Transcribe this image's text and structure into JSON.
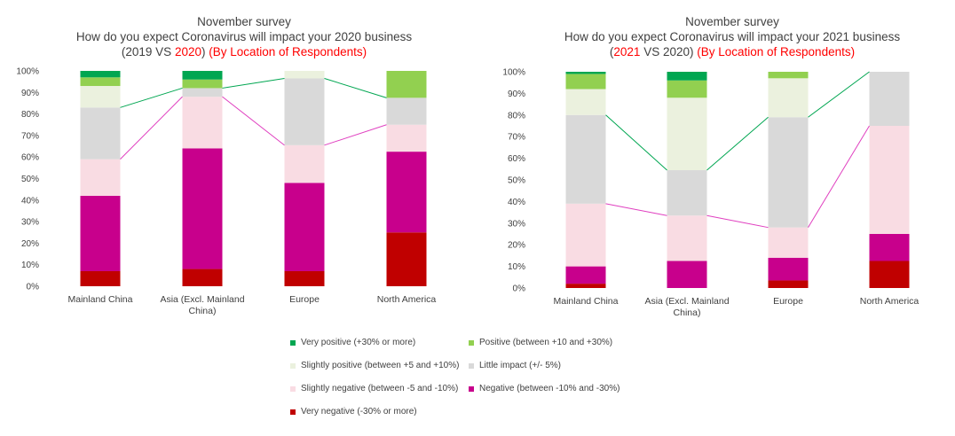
{
  "colors": {
    "very_positive": "#00a651",
    "positive": "#92d050",
    "slightly_positive": "#ebf1de",
    "little_impact": "#d9d9d9",
    "slightly_negative": "#f9dce3",
    "negative": "#c8008c",
    "very_negative": "#c00000",
    "trend_positive": "#00a651",
    "trend_negative": "#e040c0",
    "axis_text": "#404040",
    "title_red": "#ff0000"
  },
  "chart_data": [
    {
      "type": "bar",
      "stacked": true,
      "title": "November survey",
      "subtitle": "How do you expect Coronavirus will impact your 2020 business",
      "subtitle2_prefix": "(2019 VS ",
      "subtitle2_year": "2020",
      "subtitle2_mid": ") ",
      "subtitle2_red": "(By Location of Respondents)",
      "categories": [
        "Mainland China",
        "Asia (Excl. Mainland China)",
        "Europe",
        "North America"
      ],
      "category_lines": [
        [
          "Mainland China"
        ],
        [
          "Asia (Excl. Mainland",
          "China)"
        ],
        [
          "Europe"
        ],
        [
          "North America"
        ]
      ],
      "yticks": [
        "0%",
        "10%",
        "20%",
        "30%",
        "40%",
        "50%",
        "60%",
        "70%",
        "80%",
        "90%",
        "100%"
      ],
      "ylim": [
        0,
        100
      ],
      "series": [
        {
          "name": "Very negative (-30% or more)",
          "key": "very_negative",
          "values": [
            7,
            8,
            7,
            25
          ]
        },
        {
          "name": "Negative (between -10% and -30%)",
          "key": "negative",
          "values": [
            35,
            56,
            41,
            37.5
          ]
        },
        {
          "name": "Slightly negative (between -5 and -10%)",
          "key": "slightly_negative",
          "values": [
            17,
            24,
            17.5,
            12.5
          ]
        },
        {
          "name": "Little impact (+/- 5%)",
          "key": "little_impact",
          "values": [
            24,
            4,
            31,
            12.5
          ]
        },
        {
          "name": "Slightly positive (between +5 and +10%)",
          "key": "slightly_positive",
          "values": [
            10,
            0,
            3.5,
            0
          ]
        },
        {
          "name": "Positive (between +10 and +30%)",
          "key": "positive",
          "values": [
            4,
            4,
            0,
            12.5
          ]
        },
        {
          "name": "Very positive (+30% or more)",
          "key": "very_positive",
          "values": [
            3,
            4,
            0,
            0
          ]
        }
      ]
    },
    {
      "type": "bar",
      "stacked": true,
      "title": "November survey",
      "subtitle": "How do you expect Coronavirus will impact your 2021 business",
      "subtitle2_prefix": "(",
      "subtitle2_year": "2021",
      "subtitle2_mid": " VS 2020) ",
      "subtitle2_red": "(By Location of Respondents)",
      "categories": [
        "Mainland China",
        "Asia (Excl. Mainland China)",
        "Europe",
        "North America"
      ],
      "category_lines": [
        [
          "Mainland China"
        ],
        [
          "Asia (Excl. Mainland",
          "China)"
        ],
        [
          "Europe"
        ],
        [
          "North America"
        ]
      ],
      "yticks": [
        "0%",
        "10%",
        "20%",
        "30%",
        "40%",
        "50%",
        "60%",
        "70%",
        "80%",
        "90%",
        "100%"
      ],
      "ylim": [
        0,
        100
      ],
      "series": [
        {
          "name": "Very negative (-30% or more)",
          "key": "very_negative",
          "values": [
            2,
            0,
            3.5,
            12.5
          ]
        },
        {
          "name": "Negative (between -10% and -30%)",
          "key": "negative",
          "values": [
            8,
            12.5,
            10.5,
            12.5
          ]
        },
        {
          "name": "Slightly negative (between -5 and -10%)",
          "key": "slightly_negative",
          "values": [
            29,
            21,
            14,
            50
          ]
        },
        {
          "name": "Little impact (+/- 5%)",
          "key": "little_impact",
          "values": [
            41,
            21,
            51,
            25
          ]
        },
        {
          "name": "Slightly positive (between +5 and +10%)",
          "key": "slightly_positive",
          "values": [
            12,
            33.5,
            18,
            0
          ]
        },
        {
          "name": "Positive (between +10 and +30%)",
          "key": "positive",
          "values": [
            7,
            8,
            3,
            0
          ]
        },
        {
          "name": "Very positive (+30% or more)",
          "key": "very_positive",
          "values": [
            1,
            4,
            0,
            0
          ]
        }
      ]
    }
  ],
  "legend": {
    "items": [
      {
        "key": "very_positive",
        "label": "Very positive (+30% or more)"
      },
      {
        "key": "positive",
        "label": "Positive (between +10 and +30%)"
      },
      {
        "key": "slightly_positive",
        "label": "Slightly positive (between +5 and +10%)"
      },
      {
        "key": "little_impact",
        "label": "Little impact (+/- 5%)"
      },
      {
        "key": "slightly_negative",
        "label": "Slightly negative (between -5 and -10%)"
      },
      {
        "key": "negative",
        "label": "Negative (between -10% and -30%)"
      },
      {
        "key": "very_negative",
        "label": "Very negative (-30% or more)"
      }
    ]
  }
}
